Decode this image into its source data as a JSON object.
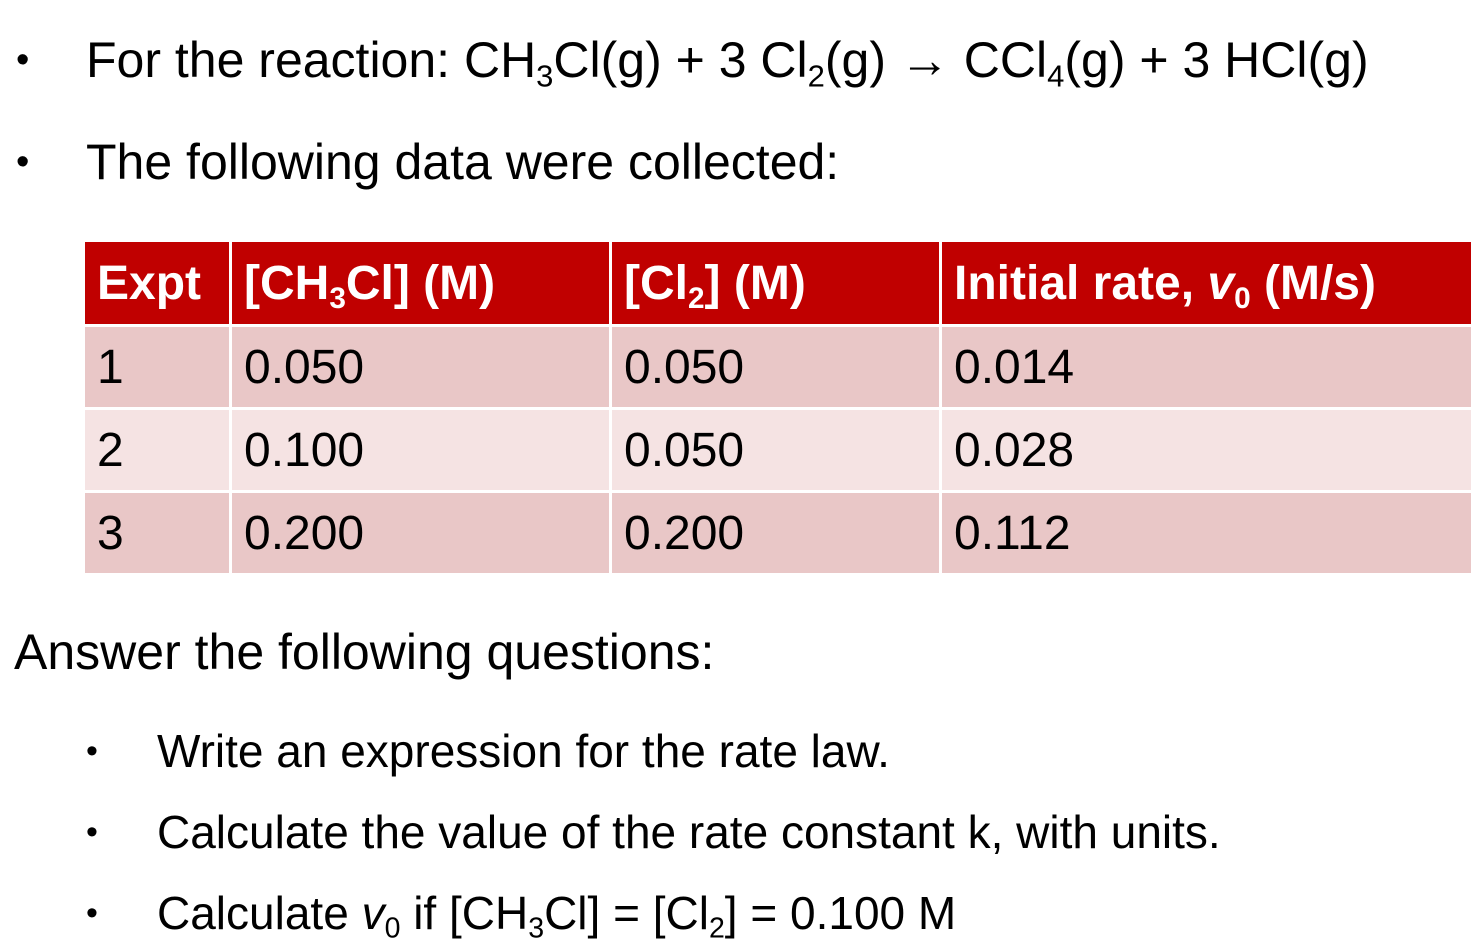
{
  "reaction_line": {
    "prefix": "For the reaction: CH",
    "sub1": "3",
    "seg2": "Cl(g) + 3 Cl",
    "sub2": "2",
    "seg3": "(g) → CCl",
    "sub3": "4",
    "seg4": "(g) + 3 HCl(g)"
  },
  "data_intro": "The following data were collected:",
  "bullet_glyph": "•",
  "table": {
    "headers": {
      "expt": "Expt",
      "ch3cl_pre": "[CH",
      "ch3cl_sub": "3",
      "ch3cl_post": "Cl] (M)",
      "cl2_pre": "[Cl",
      "cl2_sub": "2",
      "cl2_post": "] (M)",
      "rate_pre": "Initial rate, ",
      "rate_v": "v",
      "rate_sub": "0",
      "rate_post": " (M/s)"
    },
    "rows": [
      {
        "expt": "1",
        "ch3cl": "0.050",
        "cl2": "0.050",
        "rate": "0.014"
      },
      {
        "expt": "2",
        "ch3cl": "0.100",
        "cl2": "0.050",
        "rate": "0.028"
      },
      {
        "expt": "3",
        "ch3cl": "0.200",
        "cl2": "0.200",
        "rate": "0.112"
      }
    ]
  },
  "questions_heading": "Answer the following questions:",
  "questions": {
    "q1": "Write an expression for the rate law.",
    "q2": "Calculate the value of the rate constant k, with units.",
    "q3": {
      "pre": "Calculate ",
      "v": "v",
      "v_sub": "0",
      "mid1": " if [CH",
      "sub1": "3",
      "mid2": "Cl] = [Cl",
      "sub2": "2",
      "post": "] = 0.100 M"
    }
  }
}
